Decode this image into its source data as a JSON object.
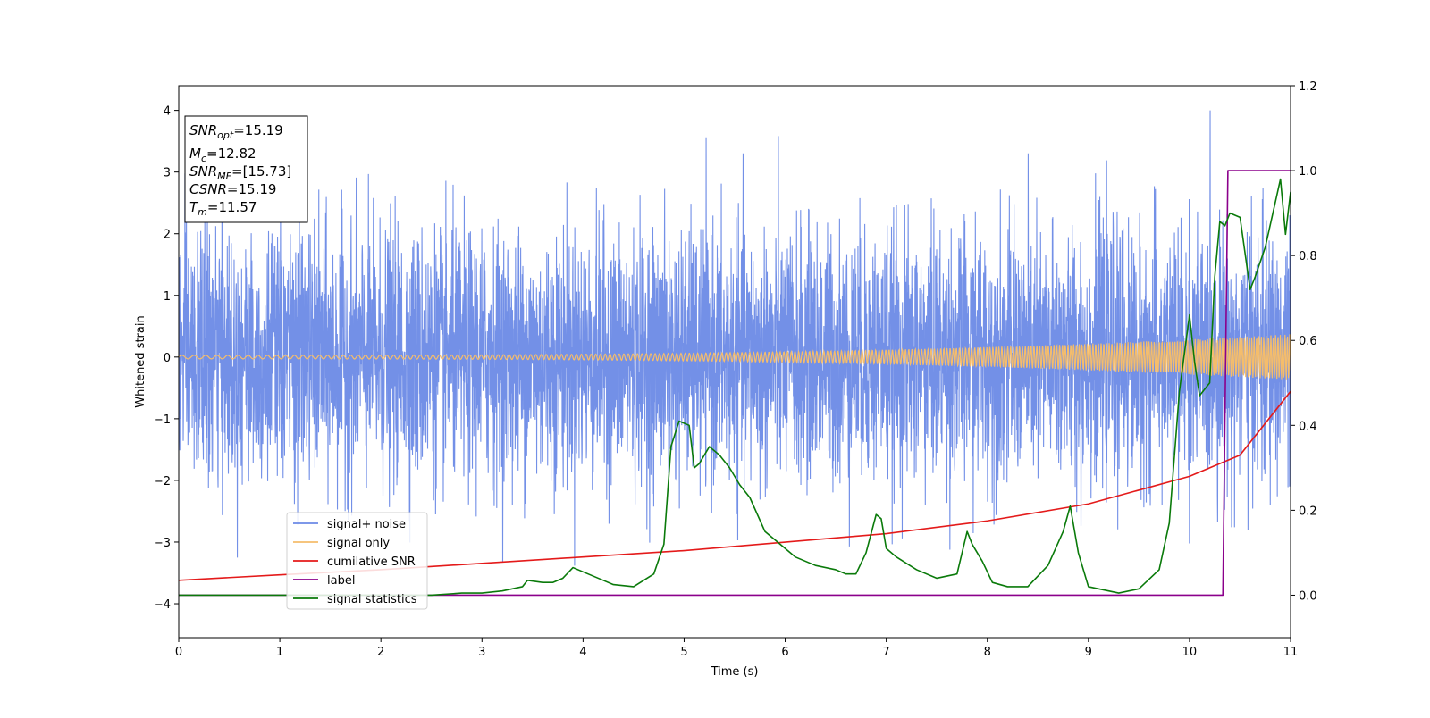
{
  "chart_data": {
    "type": "line",
    "xlabel": "Time (s)",
    "ylabel": "Whitened strain",
    "xlim": [
      0,
      11
    ],
    "ylim_left": [
      -4.55,
      4.4
    ],
    "ylim_right": [
      -0.1,
      1.2
    ],
    "x_ticks": [
      0,
      1,
      2,
      3,
      4,
      5,
      6,
      7,
      8,
      9,
      10,
      11
    ],
    "y_ticks_left": [
      -4,
      -3,
      -2,
      -1,
      0,
      1,
      2,
      3,
      4
    ],
    "y_ticks_right": [
      0.0,
      0.2,
      0.4,
      0.6,
      0.8,
      1.0,
      1.2
    ],
    "legend_location": "lower-left",
    "annotation_lines": [
      {
        "base": "SNR",
        "sub": "opt",
        "value": "=15.19"
      },
      {
        "base": "M",
        "sub": "c",
        "value": "=12.82"
      },
      {
        "base": "SNR",
        "sub": "MF",
        "value": "=[15.73]"
      },
      {
        "base": "CSNR",
        "sub": "",
        "value": "=15.19"
      },
      {
        "base": "T",
        "sub": "m",
        "value": "=11.57"
      }
    ],
    "series": [
      {
        "name": "signal+ noise",
        "color": "#6b8ae6",
        "axis": "left",
        "kind": "noise",
        "amplitude_sd": 1.0,
        "peak_range": [
          -4.2,
          4.0
        ]
      },
      {
        "name": "signal only",
        "color": "#f5bd6b",
        "axis": "left",
        "kind": "chirp",
        "amplitude_start": 0.03,
        "amplitude_end": 0.37
      },
      {
        "name": "cumilative SNR",
        "color": "#e41a1a",
        "axis": "right",
        "x": [
          0,
          1,
          2,
          3,
          4,
          5,
          6,
          7,
          8,
          9,
          10,
          10.5,
          11
        ],
        "y": [
          0.035,
          0.048,
          0.06,
          0.075,
          0.09,
          0.105,
          0.125,
          0.145,
          0.175,
          0.215,
          0.28,
          0.33,
          0.48
        ]
      },
      {
        "name": "label",
        "color": "#8b008b",
        "axis": "right",
        "x": [
          0,
          10.33,
          10.38,
          11
        ],
        "y": [
          0,
          0,
          1,
          1
        ]
      },
      {
        "name": "signal statistics",
        "color": "#0a7a0a",
        "axis": "right",
        "x": [
          0,
          1,
          2,
          2.5,
          2.8,
          3.0,
          3.2,
          3.4,
          3.45,
          3.6,
          3.7,
          3.8,
          3.9,
          4.0,
          4.2,
          4.3,
          4.5,
          4.7,
          4.8,
          4.87,
          4.95,
          5.05,
          5.1,
          5.15,
          5.25,
          5.35,
          5.45,
          5.55,
          5.65,
          5.8,
          5.9,
          6.1,
          6.3,
          6.5,
          6.6,
          6.7,
          6.8,
          6.9,
          6.95,
          7.0,
          7.1,
          7.3,
          7.5,
          7.6,
          7.7,
          7.8,
          7.85,
          7.95,
          8.05,
          8.2,
          8.4,
          8.6,
          8.75,
          8.82,
          8.9,
          9.0,
          9.3,
          9.5,
          9.7,
          9.8,
          9.9,
          10.0,
          10.05,
          10.1,
          10.2,
          10.25,
          10.3,
          10.35,
          10.4,
          10.5,
          10.6,
          10.65,
          10.75,
          10.9,
          10.95,
          11.0
        ],
        "y": [
          0.0,
          0.0,
          0.0,
          0.0,
          0.005,
          0.005,
          0.01,
          0.02,
          0.035,
          0.03,
          0.03,
          0.04,
          0.065,
          0.055,
          0.035,
          0.025,
          0.02,
          0.05,
          0.12,
          0.35,
          0.41,
          0.4,
          0.3,
          0.31,
          0.35,
          0.33,
          0.3,
          0.26,
          0.23,
          0.15,
          0.13,
          0.09,
          0.07,
          0.06,
          0.05,
          0.05,
          0.1,
          0.19,
          0.18,
          0.11,
          0.09,
          0.06,
          0.04,
          0.045,
          0.05,
          0.15,
          0.12,
          0.08,
          0.03,
          0.02,
          0.02,
          0.07,
          0.15,
          0.21,
          0.1,
          0.02,
          0.005,
          0.015,
          0.06,
          0.17,
          0.48,
          0.66,
          0.55,
          0.47,
          0.5,
          0.75,
          0.88,
          0.87,
          0.9,
          0.89,
          0.72,
          0.75,
          0.82,
          0.98,
          0.85,
          0.95
        ]
      }
    ]
  }
}
